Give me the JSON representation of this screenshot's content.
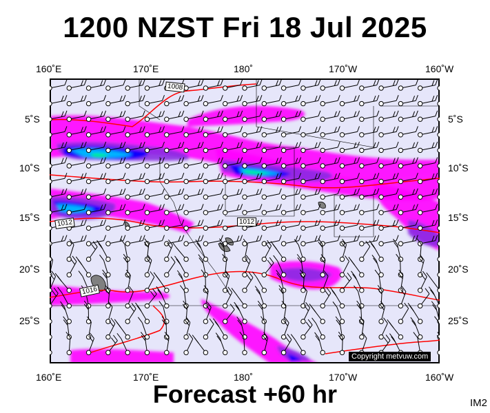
{
  "header": {
    "title": "1200 NZST Fri 18 Jul 2025"
  },
  "footer": {
    "forecast": "Forecast +60 hr",
    "image_tag": "IM2"
  },
  "map": {
    "longitude_labels": [
      "160˚E",
      "170˚E",
      "180˚",
      "170˚W",
      "160˚W"
    ],
    "latitude_labels": [
      "5˚S",
      "10˚S",
      "15˚S",
      "20˚S",
      "25˚S"
    ],
    "isobar_labels": [
      "1008",
      "1012",
      "1012",
      "1016"
    ],
    "copyright": "Copyright metvuw.com",
    "colors": {
      "background": "#e6e6fa",
      "rain_light": "#ff00ff",
      "rain_moderate": "#8a2be2",
      "rain_heavy": "#0000ff",
      "rain_very_heavy": "#00c8ff",
      "rain_extreme": "#00ff64",
      "isobar": "#ff0000",
      "land": "#808080"
    }
  }
}
